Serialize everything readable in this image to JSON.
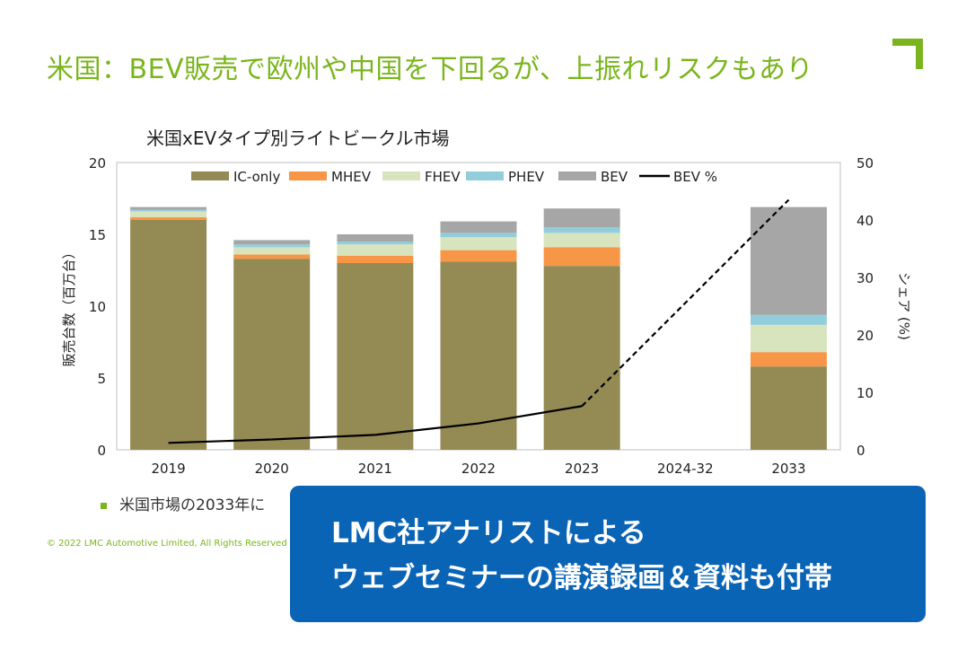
{
  "header": {
    "title": "米国：BEV販売で欧州や中国を下回るが、上振れリスクもあり"
  },
  "chart_title": "米国xEVタイプ別ライトビークル市場",
  "chart_data": {
    "type": "bar",
    "stacked": true,
    "title": "米国xEVタイプ別ライトビークル市場",
    "categories": [
      "2019",
      "2020",
      "2021",
      "2022",
      "2023",
      "2024-32",
      "2033"
    ],
    "ylabel": "販売台数（百万台）",
    "y2label": "シェア (%)",
    "ylim": [
      0,
      20
    ],
    "y2lim": [
      0,
      50
    ],
    "yticks": [
      0,
      5,
      10,
      15,
      20
    ],
    "y2ticks": [
      0,
      10,
      20,
      30,
      40,
      50
    ],
    "series": [
      {
        "name": "IC-only",
        "color": "#948a54",
        "values": [
          16.0,
          13.3,
          13.0,
          13.1,
          12.8,
          null,
          5.8
        ]
      },
      {
        "name": "MHEV",
        "color": "#f79646",
        "values": [
          0.2,
          0.3,
          0.5,
          0.8,
          1.3,
          null,
          1.0
        ]
      },
      {
        "name": "FHEV",
        "color": "#d7e4bd",
        "values": [
          0.4,
          0.5,
          0.8,
          0.9,
          1.0,
          null,
          1.9
        ]
      },
      {
        "name": "PHEV",
        "color": "#92cddc",
        "values": [
          0.1,
          0.2,
          0.2,
          0.3,
          0.4,
          null,
          0.7
        ]
      },
      {
        "name": "BEV",
        "color": "#a6a6a6",
        "values": [
          0.2,
          0.3,
          0.5,
          0.8,
          1.3,
          null,
          7.5
        ]
      }
    ],
    "line": {
      "name": "BEV %",
      "color": "#000000",
      "axis": "right",
      "values": [
        1.2,
        1.8,
        2.6,
        4.6,
        7.6,
        null,
        43.5
      ],
      "dashed_from_index": 4
    }
  },
  "bullet_text": "米国市場の2033年に",
  "copyright": "© 2022 LMC Automotive Limited, All Rights Reserved",
  "promo": {
    "line1": "LMC社アナリストによる",
    "line2": "ウェブセミナーの講演録画＆資料も付帯"
  }
}
